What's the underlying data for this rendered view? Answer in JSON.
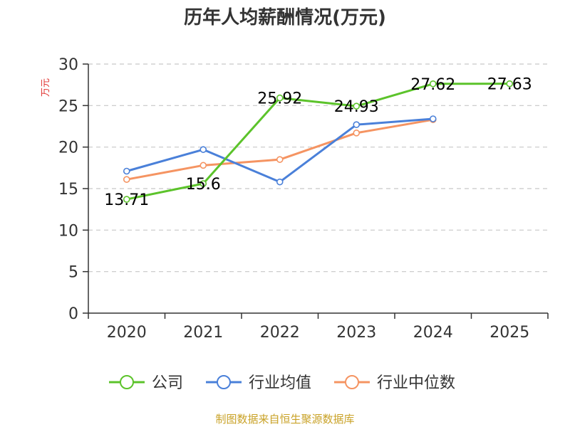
{
  "chart_data": {
    "type": "line",
    "title": "历年人均薪酬情况(万元)",
    "ylabel": "万元",
    "xlabel": "",
    "categories": [
      "2020",
      "2021",
      "2022",
      "2023",
      "2024",
      "2025"
    ],
    "ylim": [
      0,
      30
    ],
    "yticks": [
      0,
      5,
      10,
      15,
      20,
      25,
      30
    ],
    "grid": true,
    "legend_position": "bottom",
    "series": [
      {
        "name": "公司",
        "color": "#5cc32b",
        "values": [
          13.71,
          15.6,
          25.92,
          24.93,
          27.62,
          27.63
        ],
        "labels": [
          "13.71",
          "15.6",
          "25.92",
          "24.93",
          "27.62",
          "27.63"
        ]
      },
      {
        "name": "行业均值",
        "color": "#4a80d9",
        "values": [
          17.1,
          19.7,
          15.8,
          22.7,
          23.4,
          null
        ]
      },
      {
        "name": "行业中位数",
        "color": "#f59462",
        "values": [
          16.1,
          17.8,
          18.5,
          21.7,
          23.3,
          null
        ]
      }
    ],
    "source": "制图数据来自恒生聚源数据库",
    "colors": {
      "ylabel": "#e0322f",
      "source": "#c9a227",
      "axis": "#333333",
      "grid": "#c8c8c8"
    }
  }
}
